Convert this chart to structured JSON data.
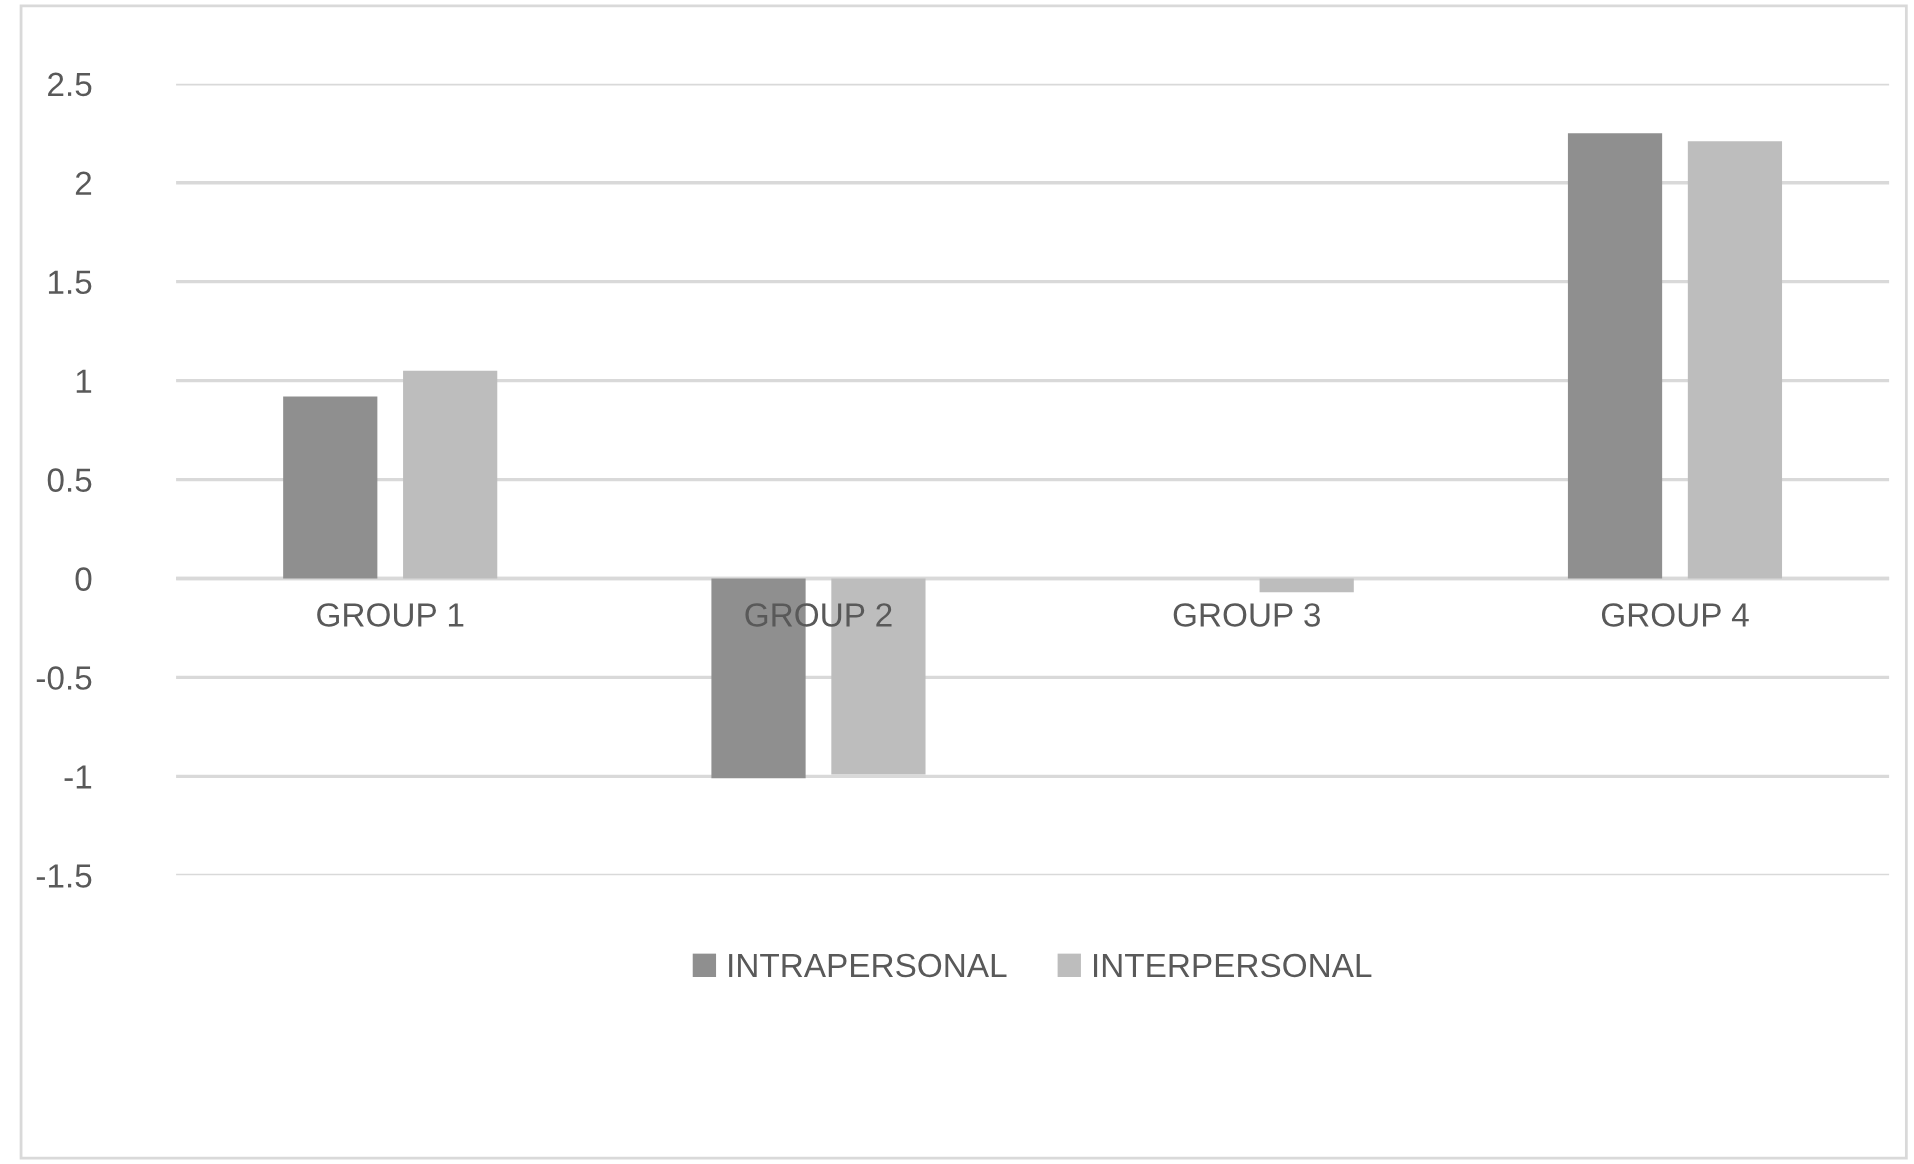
{
  "chart_data": {
    "type": "bar",
    "categories": [
      "GROUP 1",
      "GROUP 2",
      "GROUP 3",
      "GROUP 4"
    ],
    "series": [
      {
        "name": "INTRAPERSONAL",
        "color": "#8f8f8f",
        "values": [
          0.92,
          -1.01,
          0,
          2.25
        ]
      },
      {
        "name": "INTERPERSONAL",
        "color": "#bdbdbd",
        "values": [
          1.05,
          -0.99,
          -0.07,
          2.21
        ]
      }
    ],
    "ylim": [
      -1.5,
      2.5
    ],
    "yticks": [
      -1.5,
      -1,
      -0.5,
      0,
      0.5,
      1,
      1.5,
      2,
      2.5
    ],
    "grid": "y",
    "legend": "bottom"
  }
}
